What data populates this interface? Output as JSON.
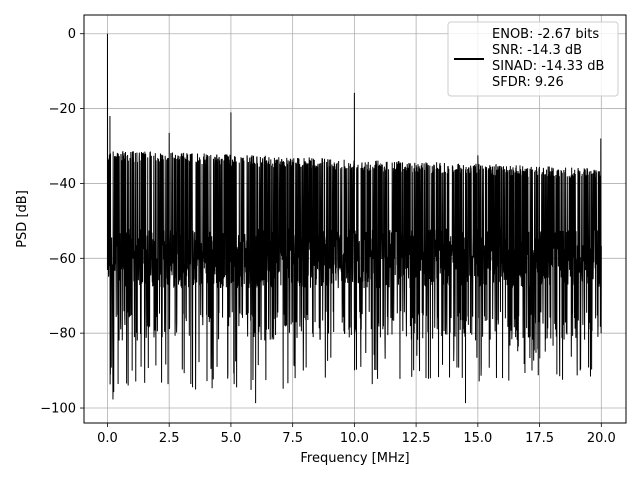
{
  "chart_data": {
    "type": "line",
    "title": "",
    "xlabel": "Frequency [MHz]",
    "ylabel": "PSD [dB]",
    "xlim": [
      -0.95,
      21.0
    ],
    "ylim": [
      -104,
      5
    ],
    "xticks": [
      0.0,
      2.5,
      5.0,
      7.5,
      10.0,
      12.5,
      15.0,
      17.5,
      20.0
    ],
    "xtick_labels": [
      "0.0",
      "2.5",
      "5.0",
      "7.5",
      "10.0",
      "12.5",
      "15.0",
      "17.5",
      "20.0"
    ],
    "yticks": [
      0,
      -20,
      -40,
      -60,
      -80,
      -100
    ],
    "ytick_labels": [
      "0",
      "−20",
      "−40",
      "−60",
      "−80",
      "−100"
    ],
    "grid": true,
    "legend_position": "top-right",
    "series": [
      {
        "color": "#000000",
        "noise_floor_top_db": [
          -31,
          -36
        ],
        "noise_floor_bottom_db": [
          -98,
          -92
        ],
        "noise_body_db": [
          -68,
          -52
        ],
        "x_range": [
          0.0,
          20.0
        ]
      }
    ],
    "peaks": [
      {
        "x": 0.0,
        "y": 0
      },
      {
        "x": 0.1,
        "y": -22
      },
      {
        "x": 2.5,
        "y": -26.5
      },
      {
        "x": 5.0,
        "y": -21
      },
      {
        "x": 10.0,
        "y": -15.8
      },
      {
        "x": 15.0,
        "y": -32.5
      },
      {
        "x": 19.98,
        "y": -28
      }
    ],
    "deep_dips": [
      {
        "x": 0.12,
        "y": -91
      },
      {
        "x": 0.25,
        "y": -93.5
      },
      {
        "x": 1.0,
        "y": -90
      },
      {
        "x": 6.0,
        "y": -98.7
      },
      {
        "x": 7.6,
        "y": -92
      },
      {
        "x": 12.9,
        "y": -92
      },
      {
        "x": 14.5,
        "y": -98.7
      },
      {
        "x": 16.0,
        "y": -92
      },
      {
        "x": 18.2,
        "y": -91
      }
    ],
    "legend": {
      "lines": [
        "ENOB: -2.67 bits",
        "SNR: -14.3 dB",
        "SINAD: -14.33 dB",
        "SFDR: 9.26"
      ],
      "line_color": "#000000"
    }
  }
}
